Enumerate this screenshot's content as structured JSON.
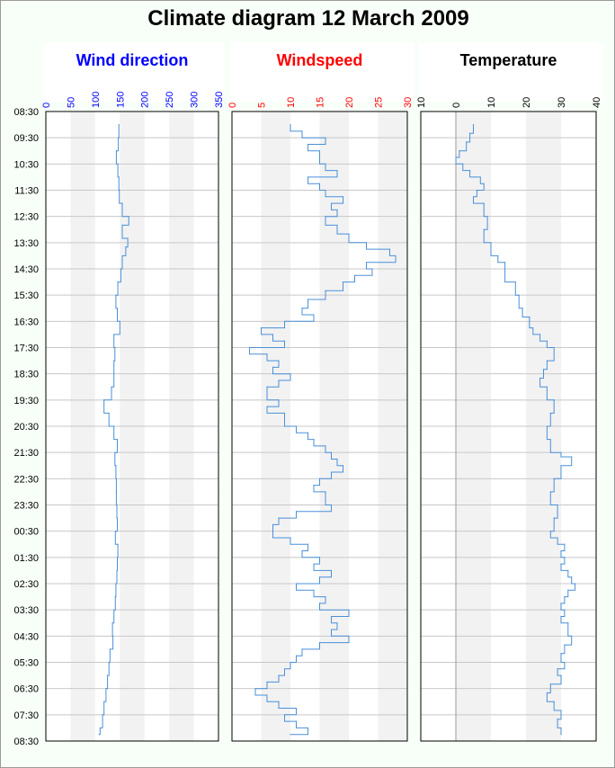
{
  "title": "Climate diagram 12 March 2009",
  "time_labels": [
    "08:30",
    "09:30",
    "10:30",
    "11:30",
    "12:30",
    "13:30",
    "14:30",
    "15:30",
    "16:30",
    "17:30",
    "18:30",
    "19:30",
    "20:30",
    "21:30",
    "22:30",
    "23:30",
    "00:30",
    "01:30",
    "02:30",
    "03:30",
    "04:30",
    "05:30",
    "06:30",
    "07:30",
    "08:30"
  ],
  "chart_data": [
    {
      "type": "line",
      "title": "Wind direction",
      "title_color": "#0000ff",
      "tick_color": "#0000ff",
      "orientation": "vertical-time",
      "xlim": [
        0,
        350
      ],
      "ticks": [
        0,
        50,
        100,
        150,
        200,
        250,
        300,
        350
      ],
      "shaded_bands": [
        [
          50,
          100
        ],
        [
          150,
          200
        ],
        [
          250,
          300
        ]
      ],
      "line_color": "#4a90d9",
      "points": [
        {
          "t": "09:00",
          "v": 148
        },
        {
          "t": "09:30",
          "v": 147
        },
        {
          "t": "10:00",
          "v": 143
        },
        {
          "t": "10:30",
          "v": 146
        },
        {
          "t": "11:00",
          "v": 148
        },
        {
          "t": "11:30",
          "v": 149
        },
        {
          "t": "12:00",
          "v": 155
        },
        {
          "t": "12:30",
          "v": 168
        },
        {
          "t": "12:50",
          "v": 155
        },
        {
          "t": "13:20",
          "v": 166
        },
        {
          "t": "13:40",
          "v": 162
        },
        {
          "t": "14:00",
          "v": 155
        },
        {
          "t": "14:30",
          "v": 152
        },
        {
          "t": "15:00",
          "v": 146
        },
        {
          "t": "15:30",
          "v": 142
        },
        {
          "t": "16:00",
          "v": 145
        },
        {
          "t": "16:30",
          "v": 150
        },
        {
          "t": "17:00",
          "v": 138
        },
        {
          "t": "17:30",
          "v": 140
        },
        {
          "t": "18:00",
          "v": 138
        },
        {
          "t": "18:30",
          "v": 138
        },
        {
          "t": "19:00",
          "v": 133
        },
        {
          "t": "19:30",
          "v": 118
        },
        {
          "t": "20:00",
          "v": 128
        },
        {
          "t": "20:30",
          "v": 138
        },
        {
          "t": "21:00",
          "v": 145
        },
        {
          "t": "21:30",
          "v": 140
        },
        {
          "t": "22:00",
          "v": 142
        },
        {
          "t": "22:30",
          "v": 143
        },
        {
          "t": "23:00",
          "v": 143
        },
        {
          "t": "23:30",
          "v": 144
        },
        {
          "t": "00:00",
          "v": 145
        },
        {
          "t": "00:30",
          "v": 141
        },
        {
          "t": "01:00",
          "v": 146
        },
        {
          "t": "01:30",
          "v": 145
        },
        {
          "t": "02:00",
          "v": 144
        },
        {
          "t": "02:30",
          "v": 142
        },
        {
          "t": "03:00",
          "v": 141
        },
        {
          "t": "03:30",
          "v": 138
        },
        {
          "t": "04:00",
          "v": 135
        },
        {
          "t": "04:30",
          "v": 136
        },
        {
          "t": "05:00",
          "v": 130
        },
        {
          "t": "05:30",
          "v": 128
        },
        {
          "t": "06:00",
          "v": 125
        },
        {
          "t": "06:30",
          "v": 122
        },
        {
          "t": "07:00",
          "v": 118
        },
        {
          "t": "07:30",
          "v": 115
        },
        {
          "t": "08:00",
          "v": 110
        },
        {
          "t": "08:15",
          "v": 108
        }
      ]
    },
    {
      "type": "line",
      "title": "Windspeed",
      "title_color": "#ff0000",
      "tick_color": "#ff0000",
      "orientation": "vertical-time",
      "xlim": [
        0,
        30
      ],
      "ticks": [
        0,
        5,
        10,
        15,
        20,
        25,
        30
      ],
      "shaded_bands": [
        [
          5,
          10
        ],
        [
          15,
          20
        ],
        [
          25,
          30
        ]
      ],
      "line_color": "#4a90d9",
      "points": [
        {
          "t": "09:00",
          "v": 10
        },
        {
          "t": "09:15",
          "v": 12
        },
        {
          "t": "09:30",
          "v": 16
        },
        {
          "t": "09:45",
          "v": 13
        },
        {
          "t": "10:00",
          "v": 15
        },
        {
          "t": "10:30",
          "v": 16
        },
        {
          "t": "10:45",
          "v": 18
        },
        {
          "t": "11:00",
          "v": 13
        },
        {
          "t": "11:15",
          "v": 15
        },
        {
          "t": "11:30",
          "v": 16
        },
        {
          "t": "11:45",
          "v": 19
        },
        {
          "t": "12:00",
          "v": 17
        },
        {
          "t": "12:15",
          "v": 18
        },
        {
          "t": "12:30",
          "v": 16
        },
        {
          "t": "12:50",
          "v": 18
        },
        {
          "t": "13:10",
          "v": 20
        },
        {
          "t": "13:30",
          "v": 23
        },
        {
          "t": "13:45",
          "v": 27
        },
        {
          "t": "14:00",
          "v": 28
        },
        {
          "t": "14:15",
          "v": 23
        },
        {
          "t": "14:30",
          "v": 24
        },
        {
          "t": "14:45",
          "v": 21
        },
        {
          "t": "15:00",
          "v": 19
        },
        {
          "t": "15:20",
          "v": 16
        },
        {
          "t": "15:40",
          "v": 13
        },
        {
          "t": "16:00",
          "v": 12
        },
        {
          "t": "16:15",
          "v": 14
        },
        {
          "t": "16:30",
          "v": 9
        },
        {
          "t": "16:45",
          "v": 5
        },
        {
          "t": "17:00",
          "v": 7
        },
        {
          "t": "17:15",
          "v": 9
        },
        {
          "t": "17:30",
          "v": 3
        },
        {
          "t": "17:45",
          "v": 6
        },
        {
          "t": "18:00",
          "v": 8
        },
        {
          "t": "18:15",
          "v": 7
        },
        {
          "t": "18:30",
          "v": 10
        },
        {
          "t": "18:45",
          "v": 8
        },
        {
          "t": "19:00",
          "v": 6
        },
        {
          "t": "19:30",
          "v": 8
        },
        {
          "t": "19:45",
          "v": 6
        },
        {
          "t": "20:00",
          "v": 9
        },
        {
          "t": "20:30",
          "v": 11
        },
        {
          "t": "20:45",
          "v": 13
        },
        {
          "t": "21:00",
          "v": 14
        },
        {
          "t": "21:15",
          "v": 16
        },
        {
          "t": "21:30",
          "v": 17
        },
        {
          "t": "21:45",
          "v": 18
        },
        {
          "t": "22:00",
          "v": 19
        },
        {
          "t": "22:15",
          "v": 17
        },
        {
          "t": "22:30",
          "v": 15
        },
        {
          "t": "22:45",
          "v": 14
        },
        {
          "t": "23:00",
          "v": 16
        },
        {
          "t": "23:30",
          "v": 17
        },
        {
          "t": "23:45",
          "v": 11
        },
        {
          "t": "00:00",
          "v": 8
        },
        {
          "t": "00:15",
          "v": 7
        },
        {
          "t": "00:30",
          "v": 7
        },
        {
          "t": "00:45",
          "v": 10
        },
        {
          "t": "01:00",
          "v": 13
        },
        {
          "t": "01:15",
          "v": 12
        },
        {
          "t": "01:30",
          "v": 15
        },
        {
          "t": "01:45",
          "v": 14
        },
        {
          "t": "02:00",
          "v": 17
        },
        {
          "t": "02:15",
          "v": 15
        },
        {
          "t": "02:30",
          "v": 11
        },
        {
          "t": "02:45",
          "v": 14
        },
        {
          "t": "03:00",
          "v": 16
        },
        {
          "t": "03:15",
          "v": 15
        },
        {
          "t": "03:30",
          "v": 20
        },
        {
          "t": "03:45",
          "v": 17
        },
        {
          "t": "04:00",
          "v": 18
        },
        {
          "t": "04:15",
          "v": 17
        },
        {
          "t": "04:30",
          "v": 20
        },
        {
          "t": "04:45",
          "v": 15
        },
        {
          "t": "05:00",
          "v": 12
        },
        {
          "t": "05:15",
          "v": 11
        },
        {
          "t": "05:30",
          "v": 10
        },
        {
          "t": "05:45",
          "v": 9
        },
        {
          "t": "06:00",
          "v": 8
        },
        {
          "t": "06:15",
          "v": 6
        },
        {
          "t": "06:30",
          "v": 4
        },
        {
          "t": "06:45",
          "v": 6
        },
        {
          "t": "07:00",
          "v": 8
        },
        {
          "t": "07:15",
          "v": 11
        },
        {
          "t": "07:30",
          "v": 9
        },
        {
          "t": "07:45",
          "v": 11
        },
        {
          "t": "08:00",
          "v": 13
        },
        {
          "t": "08:15",
          "v": 10
        }
      ]
    },
    {
      "type": "line",
      "title": "Temperature",
      "title_color": "#000000",
      "tick_color": "#000000",
      "orientation": "vertical-time",
      "xlim": [
        -10,
        40
      ],
      "ticks": [
        -10,
        0,
        10,
        20,
        30,
        40
      ],
      "tick_labels": [
        "10",
        "0",
        "10",
        "20",
        "30",
        "40"
      ],
      "shaded_bands": [
        [
          0,
          10
        ],
        [
          20,
          30
        ]
      ],
      "zero_line": 0,
      "line_color": "#4a90d9",
      "points": [
        {
          "t": "09:00",
          "v": 5
        },
        {
          "t": "09:20",
          "v": 4
        },
        {
          "t": "09:40",
          "v": 3
        },
        {
          "t": "10:00",
          "v": 1
        },
        {
          "t": "10:15",
          "v": 0
        },
        {
          "t": "10:30",
          "v": 2
        },
        {
          "t": "10:45",
          "v": 4
        },
        {
          "t": "11:00",
          "v": 7
        },
        {
          "t": "11:15",
          "v": 8
        },
        {
          "t": "11:30",
          "v": 6
        },
        {
          "t": "11:45",
          "v": 5
        },
        {
          "t": "12:00",
          "v": 8
        },
        {
          "t": "12:30",
          "v": 9
        },
        {
          "t": "13:00",
          "v": 8
        },
        {
          "t": "13:30",
          "v": 10
        },
        {
          "t": "14:00",
          "v": 12
        },
        {
          "t": "14:15",
          "v": 14
        },
        {
          "t": "14:30",
          "v": 14
        },
        {
          "t": "15:00",
          "v": 17
        },
        {
          "t": "15:30",
          "v": 18
        },
        {
          "t": "16:00",
          "v": 19
        },
        {
          "t": "16:20",
          "v": 21
        },
        {
          "t": "16:45",
          "v": 22
        },
        {
          "t": "17:00",
          "v": 24
        },
        {
          "t": "17:15",
          "v": 26
        },
        {
          "t": "17:30",
          "v": 28
        },
        {
          "t": "18:00",
          "v": 26
        },
        {
          "t": "18:20",
          "v": 25
        },
        {
          "t": "18:40",
          "v": 24
        },
        {
          "t": "19:00",
          "v": 26
        },
        {
          "t": "19:30",
          "v": 28
        },
        {
          "t": "20:00",
          "v": 27
        },
        {
          "t": "20:30",
          "v": 26
        },
        {
          "t": "21:00",
          "v": 27
        },
        {
          "t": "21:30",
          "v": 30
        },
        {
          "t": "21:40",
          "v": 33
        },
        {
          "t": "22:00",
          "v": 30
        },
        {
          "t": "22:30",
          "v": 28
        },
        {
          "t": "23:00",
          "v": 27
        },
        {
          "t": "23:30",
          "v": 29
        },
        {
          "t": "00:00",
          "v": 28
        },
        {
          "t": "00:30",
          "v": 27
        },
        {
          "t": "00:45",
          "v": 29
        },
        {
          "t": "01:00",
          "v": 31
        },
        {
          "t": "01:15",
          "v": 30
        },
        {
          "t": "01:30",
          "v": 31
        },
        {
          "t": "01:45",
          "v": 30
        },
        {
          "t": "02:00",
          "v": 32
        },
        {
          "t": "02:15",
          "v": 33
        },
        {
          "t": "02:30",
          "v": 34
        },
        {
          "t": "02:45",
          "v": 32
        },
        {
          "t": "03:00",
          "v": 31
        },
        {
          "t": "03:15",
          "v": 30
        },
        {
          "t": "03:30",
          "v": 31
        },
        {
          "t": "03:45",
          "v": 30
        },
        {
          "t": "04:00",
          "v": 32
        },
        {
          "t": "04:30",
          "v": 33
        },
        {
          "t": "04:50",
          "v": 31
        },
        {
          "t": "05:10",
          "v": 30
        },
        {
          "t": "05:30",
          "v": 31
        },
        {
          "t": "05:45",
          "v": 29
        },
        {
          "t": "06:00",
          "v": 30
        },
        {
          "t": "06:20",
          "v": 27
        },
        {
          "t": "06:40",
          "v": 26
        },
        {
          "t": "07:00",
          "v": 28
        },
        {
          "t": "07:20",
          "v": 30
        },
        {
          "t": "07:40",
          "v": 29
        },
        {
          "t": "08:00",
          "v": 30
        },
        {
          "t": "08:15",
          "v": 30
        }
      ]
    }
  ]
}
